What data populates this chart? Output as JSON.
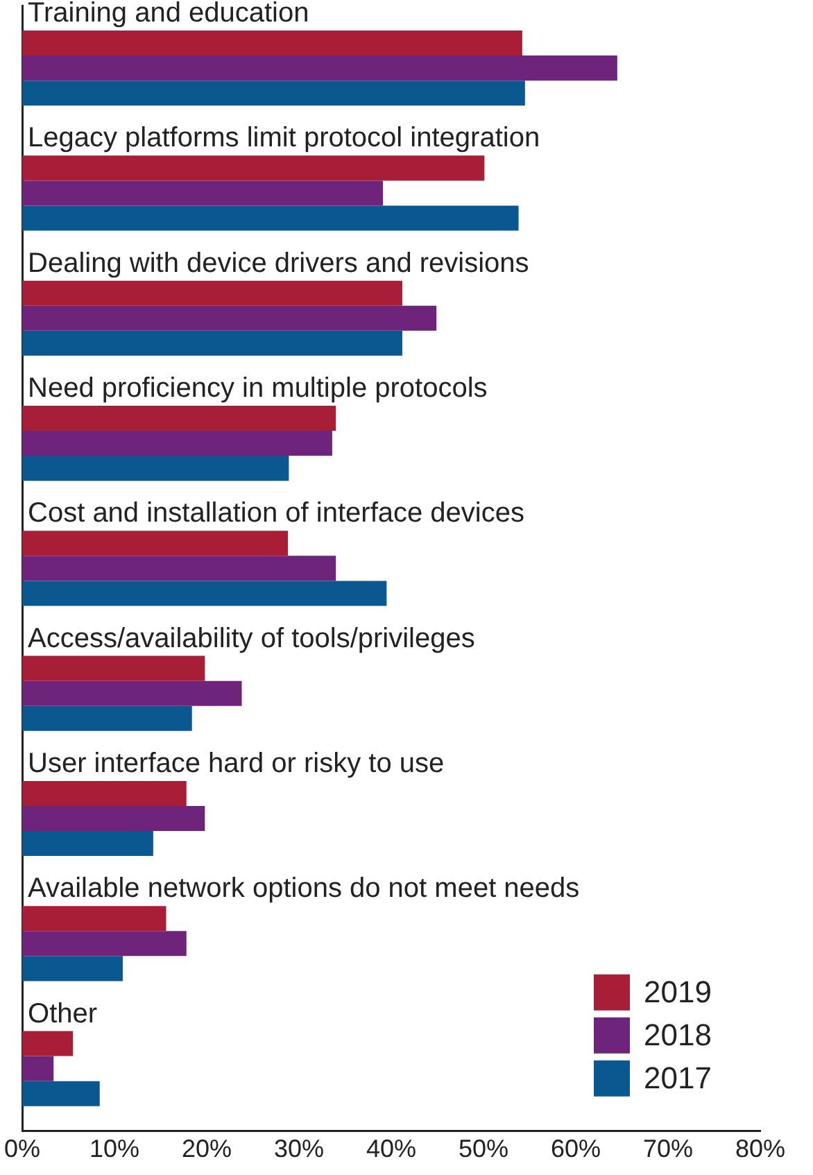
{
  "chart_data": {
    "type": "bar",
    "orientation": "horizontal",
    "categories": [
      "Training and education",
      "Legacy platforms limit protocol integration",
      "Dealing with device drivers and revisions",
      "Need proficiency in multiple protocols",
      "Cost and installation of interface devices",
      "Access/availability of tools/privileges",
      "User interface hard or risky to use",
      "Available network options do not meet needs",
      "Other"
    ],
    "series": [
      {
        "name": "2019",
        "color": "#a91e37",
        "values": [
          54.2,
          50.1,
          41.2,
          34.0,
          28.8,
          19.8,
          17.8,
          15.6,
          5.5
        ]
      },
      {
        "name": "2018",
        "color": "#6f247c",
        "values": [
          64.5,
          39.1,
          44.9,
          33.6,
          34.0,
          23.8,
          19.8,
          17.8,
          3.4
        ]
      },
      {
        "name": "2017",
        "color": "#0b5890",
        "values": [
          54.5,
          53.8,
          41.2,
          28.9,
          39.5,
          18.4,
          14.2,
          10.9,
          8.4
        ]
      }
    ],
    "xlim": [
      0,
      80
    ],
    "xticks": [
      {
        "value": 0,
        "label": "0%"
      },
      {
        "value": 10,
        "label": "10%"
      },
      {
        "value": 20,
        "label": "20%"
      },
      {
        "value": 30,
        "label": "30%"
      },
      {
        "value": 40,
        "label": "40%"
      },
      {
        "value": 50,
        "label": "50%"
      },
      {
        "value": 60,
        "label": "60%"
      },
      {
        "value": 70,
        "label": "70%"
      },
      {
        "value": 80,
        "label": "80%"
      }
    ],
    "grid": false,
    "legend": "bottom right"
  }
}
